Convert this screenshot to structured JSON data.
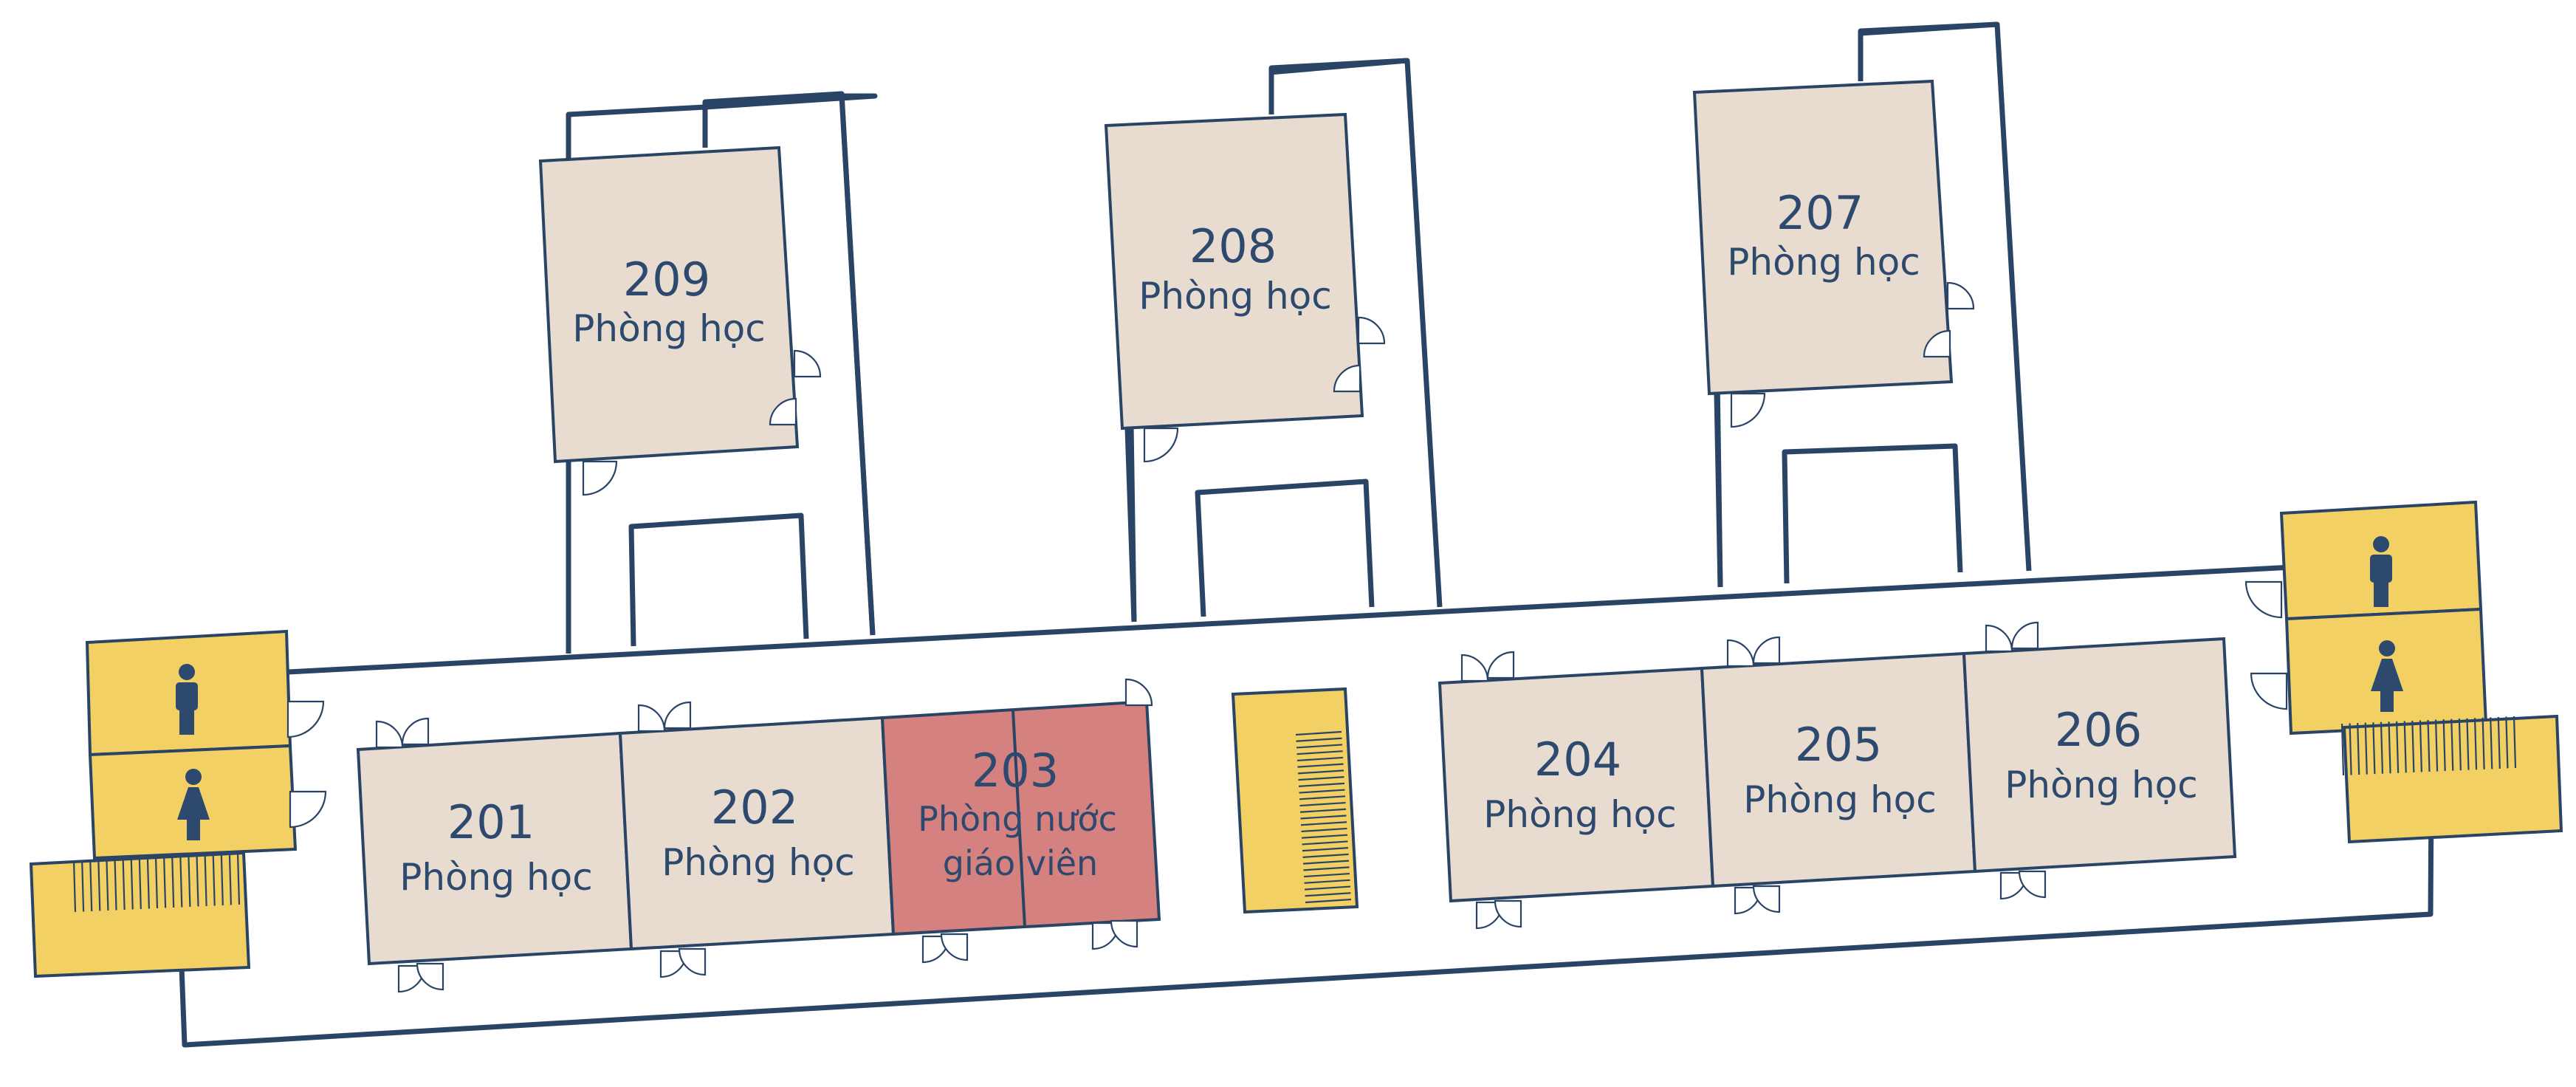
{
  "colors": {
    "wall": "#2a4466",
    "text": "#2d4a6e",
    "classroom_fill": "#e8dbcf",
    "teacher_room_fill": "#d58180",
    "stairs_wc_fill": "#f3d064"
  },
  "rooms": [
    {
      "number": "201",
      "name": "Phòng học"
    },
    {
      "number": "202",
      "name": "Phòng học"
    },
    {
      "number": "203",
      "name_line1": "Phòng nước",
      "name_line2": "giáo viên"
    },
    {
      "number": "204",
      "name": "Phòng học"
    },
    {
      "number": "205",
      "name": "Phòng học"
    },
    {
      "number": "206",
      "name": "Phòng học"
    },
    {
      "number": "207",
      "name": "Phòng học"
    },
    {
      "number": "208",
      "name": "Phòng học"
    },
    {
      "number": "209",
      "name": "Phòng học"
    }
  ],
  "icons": [
    "male-restroom-icon",
    "female-restroom-icon",
    "stairs-icon",
    "door-swing-icon"
  ]
}
